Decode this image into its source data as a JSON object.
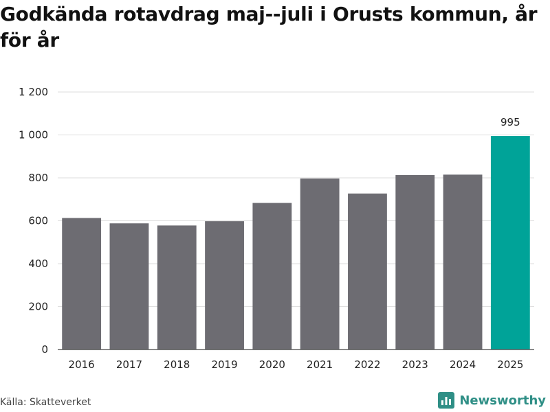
{
  "title": "Godkända rotavdrag maj--juli i Orusts kommun, år för år",
  "source": "Källa: Skatteverket",
  "brand": "Newsworthy",
  "colors": {
    "bar": "#6d6c72",
    "highlight": "#00a398",
    "grid": "#dddddd",
    "brand": "#2f8f86"
  },
  "chart_data": {
    "type": "bar",
    "title": "Godkända rotavdrag maj--juli i Orusts kommun, år för år",
    "xlabel": "",
    "ylabel": "",
    "categories": [
      "2016",
      "2017",
      "2018",
      "2019",
      "2020",
      "2021",
      "2022",
      "2023",
      "2024",
      "2025"
    ],
    "values": [
      613,
      588,
      578,
      598,
      683,
      797,
      727,
      813,
      815,
      995
    ],
    "ylim": [
      0,
      1200
    ],
    "yticks": [
      0,
      200,
      400,
      600,
      800,
      1000,
      1200
    ],
    "ytick_labels": [
      "0",
      "200",
      "400",
      "600",
      "800",
      "1 000",
      "1 200"
    ],
    "highlight_index": 9,
    "data_labels": [
      {
        "index": 9,
        "text": "995"
      }
    ],
    "grid": "horizontal",
    "legend": "none"
  }
}
